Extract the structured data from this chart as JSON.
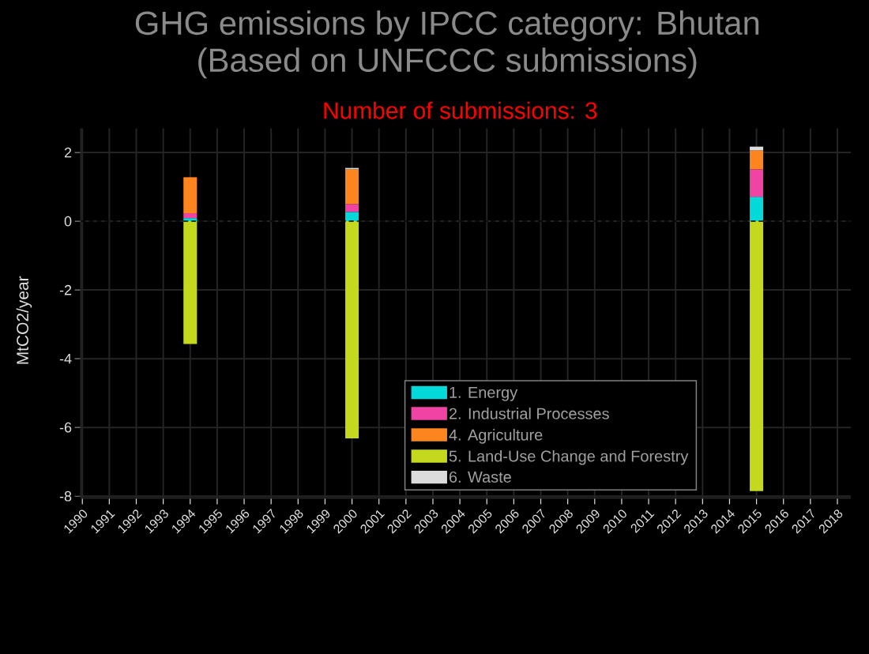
{
  "chart_data": {
    "type": "bar",
    "title": "GHG emissions by IPCC category: Bhutan",
    "subtitle": "(Based on UNFCCC submissions)",
    "annotations": [
      "Number of submissions: 3"
    ],
    "ylabel": "MtCO2/year",
    "categories": [
      "1990",
      "1991",
      "1992",
      "1993",
      "1994",
      "1995",
      "1996",
      "1997",
      "1998",
      "1999",
      "2000",
      "2001",
      "2002",
      "2003",
      "2004",
      "2005",
      "2006",
      "2007",
      "2008",
      "2009",
      "2010",
      "2011",
      "2012",
      "2013",
      "2014",
      "2015",
      "2016",
      "2017",
      "2018"
    ],
    "stacked": true,
    "series": [
      {
        "name": "1. Energy",
        "color": "#04d9d9",
        "values": [
          null,
          null,
          null,
          null,
          0.09,
          null,
          null,
          null,
          null,
          null,
          0.27,
          null,
          null,
          null,
          null,
          null,
          null,
          null,
          null,
          null,
          null,
          null,
          null,
          null,
          null,
          0.71,
          null,
          null,
          null
        ]
      },
      {
        "name": "2. Industrial Processes",
        "color": "#f043a3",
        "values": [
          null,
          null,
          null,
          null,
          0.14,
          null,
          null,
          null,
          null,
          null,
          0.23,
          null,
          null,
          null,
          null,
          null,
          null,
          null,
          null,
          null,
          null,
          null,
          null,
          null,
          null,
          0.8,
          null,
          null,
          null
        ]
      },
      {
        "name": "4. Agriculture",
        "color": "#fd8520",
        "values": [
          null,
          null,
          null,
          null,
          1.05,
          null,
          null,
          null,
          null,
          null,
          1.01,
          null,
          null,
          null,
          null,
          null,
          null,
          null,
          null,
          null,
          null,
          null,
          null,
          null,
          null,
          0.55,
          null,
          null,
          null
        ]
      },
      {
        "name": "5. Land-Use Change and Forestry",
        "color": "#c4d81e",
        "values": [
          null,
          null,
          null,
          null,
          -3.57,
          null,
          null,
          null,
          null,
          null,
          -6.32,
          null,
          null,
          null,
          null,
          null,
          null,
          null,
          null,
          null,
          null,
          null,
          null,
          null,
          null,
          -7.85,
          null,
          null,
          null
        ]
      },
      {
        "name": "6. Waste",
        "color": "#dcdcdc",
        "values": [
          null,
          null,
          null,
          null,
          null,
          null,
          null,
          null,
          null,
          null,
          0.04,
          null,
          null,
          null,
          null,
          null,
          null,
          null,
          null,
          null,
          null,
          null,
          null,
          null,
          null,
          0.11,
          null,
          null,
          null
        ]
      }
    ],
    "ylim": [
      -8.05,
      2.7
    ],
    "yticks": [
      -8,
      -6,
      -4,
      -2,
      0,
      2
    ],
    "grid": true,
    "legend": "bottom",
    "ref_lines": [
      {
        "axis": "y",
        "value": 0,
        "color": "#000000",
        "line_style": "dashed"
      }
    ]
  }
}
